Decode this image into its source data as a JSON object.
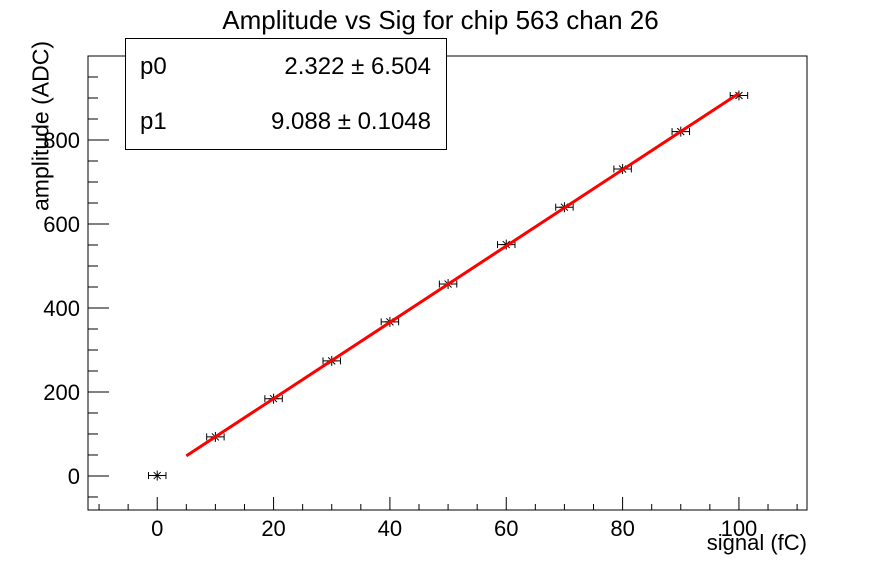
{
  "chart_data": {
    "type": "scatter",
    "title": "Amplitude vs Sig for chip 563 chan 26",
    "xlabel": "signal (fC)",
    "ylabel": "amplitude (ADC)",
    "xlim": [
      -11.9,
      111.7
    ],
    "ylim": [
      -81,
      1000
    ],
    "x_major_ticks": [
      0,
      20,
      40,
      60,
      80,
      100
    ],
    "x_minor_step": 5,
    "y_major_ticks": [
      0,
      200,
      400,
      600,
      800
    ],
    "y_minor_step": 50,
    "grid": false,
    "legend": "none",
    "frame_color": "#000000",
    "background_color": "#ffffff",
    "series": [
      {
        "name": "amplitude-vs-signal-points",
        "marker": "asterisk",
        "color": "#000000",
        "x": [
          0,
          10,
          20,
          30,
          40,
          50,
          60,
          70,
          80,
          90,
          100
        ],
        "y": [
          1,
          93,
          184,
          274,
          367,
          457,
          551,
          640,
          731,
          820,
          906
        ],
        "x_error": 1.5
      }
    ],
    "fit": {
      "name": "linear-fit",
      "color": "#ff0000",
      "line_width": 3,
      "p0": 2.322,
      "p1": 9.088,
      "range": [
        5,
        100
      ]
    }
  },
  "stats": {
    "rows": [
      {
        "name": "p0",
        "value": "2.322 ± 6.504"
      },
      {
        "name": "p1",
        "value": "9.088 ± 0.1048"
      }
    ]
  }
}
